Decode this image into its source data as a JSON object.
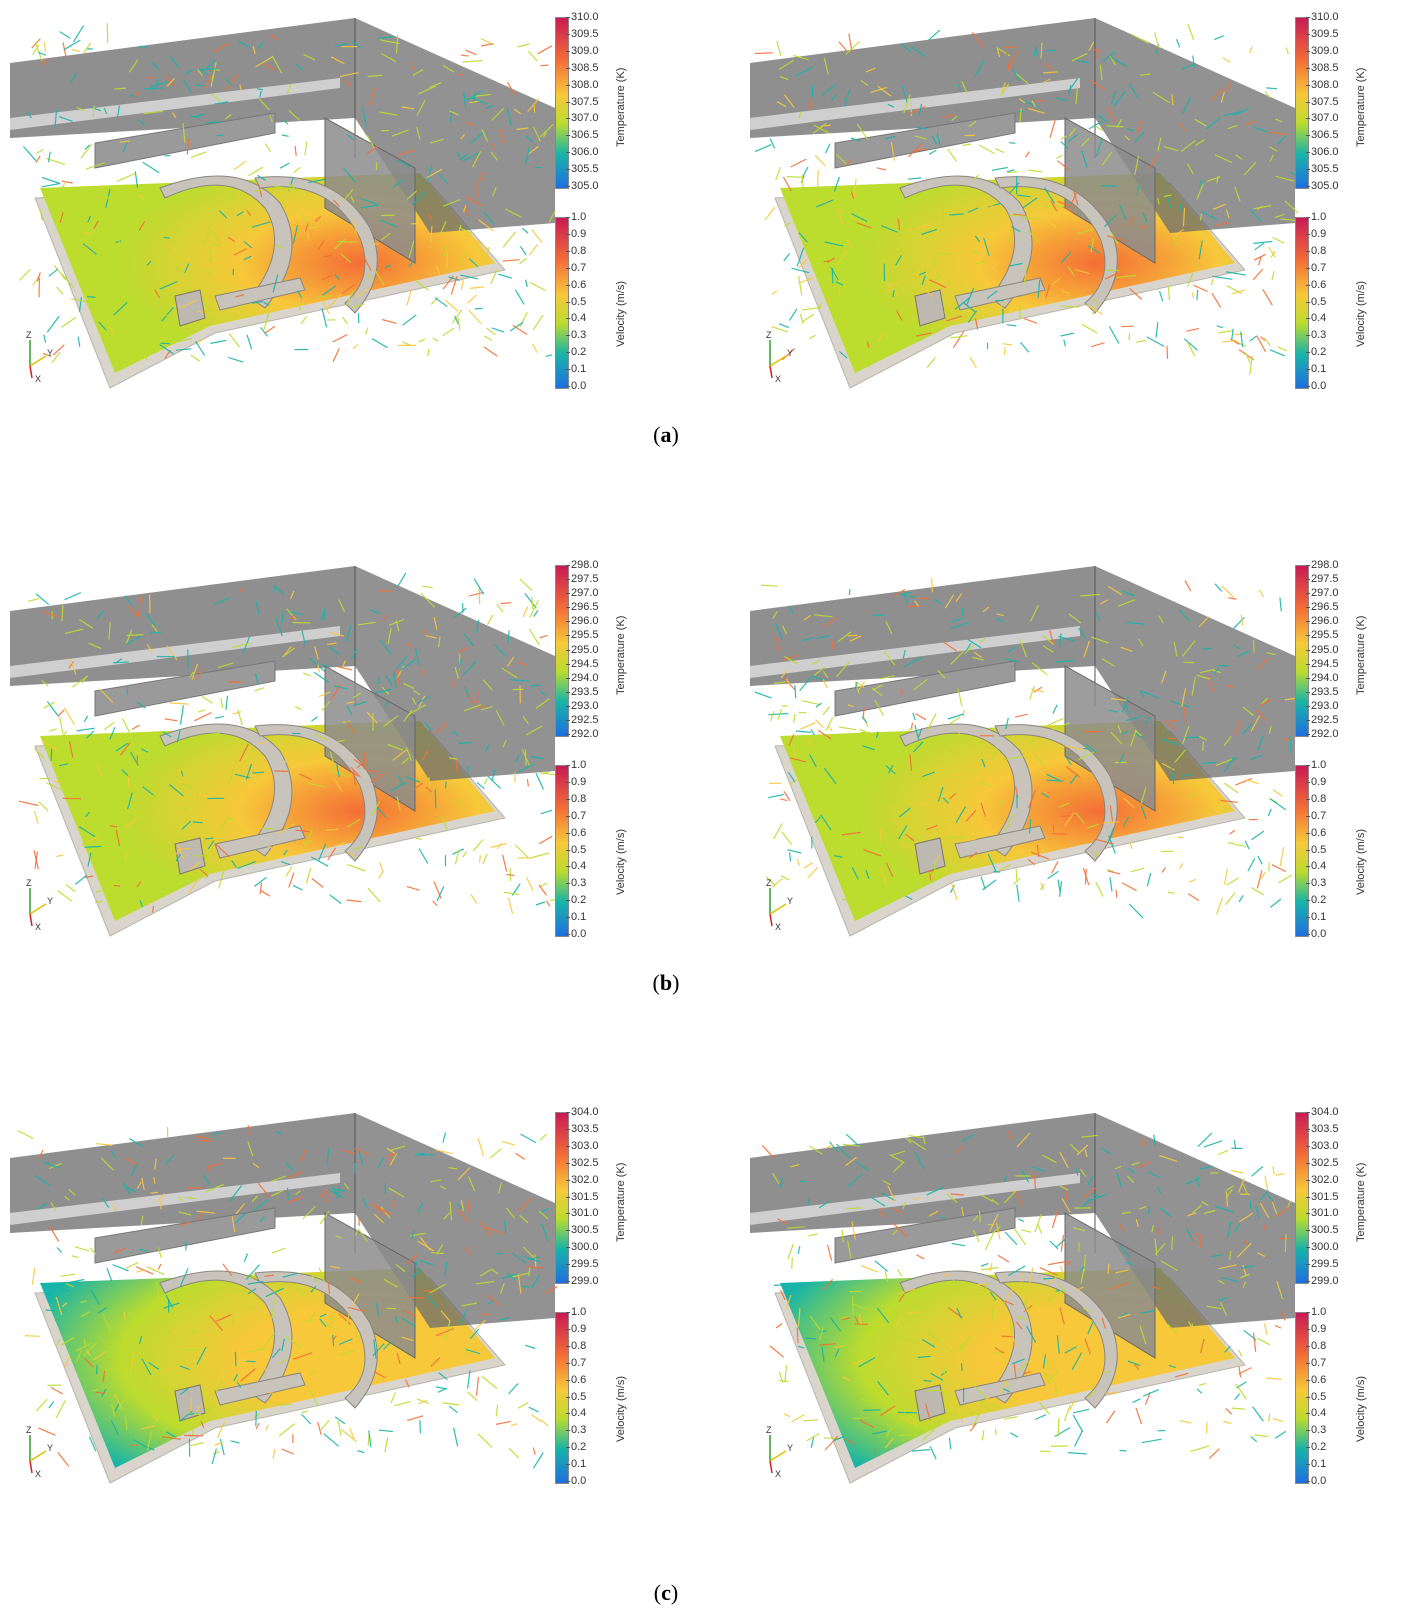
{
  "rows": [
    {
      "caption_open": "(",
      "caption_letter": "a",
      "caption_close": ")",
      "temperature": {
        "title": "Temperature (K)",
        "ticks": [
          "310.0",
          "309.5",
          "309.0",
          "308.5",
          "308.0",
          "307.5",
          "307.0",
          "306.5",
          "306.0",
          "305.5",
          "305.0"
        ]
      },
      "velocity": {
        "title": "Velocity (m/s)",
        "ticks": [
          "1.0",
          "0.9",
          "0.8",
          "0.7",
          "0.6",
          "0.5",
          "0.4",
          "0.3",
          "0.2",
          "0.1",
          "0.0"
        ]
      }
    },
    {
      "caption_open": "(",
      "caption_letter": "b",
      "caption_close": ")",
      "temperature": {
        "title": "Temperature (K)",
        "ticks": [
          "298.0",
          "297.5",
          "297.0",
          "296.5",
          "296.0",
          "295.5",
          "295.0",
          "294.5",
          "294.0",
          "293.5",
          "293.0",
          "292.5",
          "292.0"
        ]
      },
      "velocity": {
        "title": "Velocity (m/s)",
        "ticks": [
          "1.0",
          "0.9",
          "0.8",
          "0.7",
          "0.6",
          "0.5",
          "0.4",
          "0.3",
          "0.2",
          "0.1",
          "0.0"
        ]
      }
    },
    {
      "caption_open": "(",
      "caption_letter": "c",
      "caption_close": ")",
      "temperature": {
        "title": "Temperature (K)",
        "ticks": [
          "304.0",
          "303.5",
          "303.0",
          "302.5",
          "302.0",
          "301.5",
          "301.0",
          "300.5",
          "300.0",
          "299.5",
          "299.0"
        ]
      },
      "velocity": {
        "title": "Velocity (m/s)",
        "ticks": [
          "1.0",
          "0.9",
          "0.8",
          "0.7",
          "0.6",
          "0.5",
          "0.4",
          "0.3",
          "0.2",
          "0.1",
          "0.0"
        ]
      }
    }
  ],
  "axes": {
    "z": "Z",
    "y": "Y",
    "x": "X"
  },
  "colors": {
    "cold": "#1f6fe0",
    "cool": "#18b4a8",
    "mid": "#bcdc2e",
    "warm": "#f7c83a",
    "hot": "#f46e36",
    "max": "#c81a55"
  }
}
